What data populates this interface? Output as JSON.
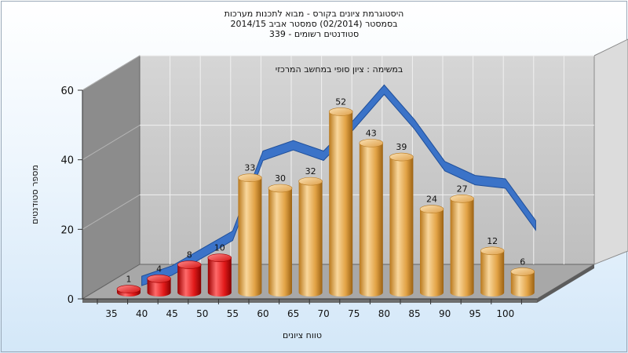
{
  "chart_data": {
    "type": "bar",
    "title": "היסטוגרמת ציונים בקורס - מבוא לתכנות מערכות",
    "subtitle": "בסמסטר  (02/2014)  סמסטר אביב 2014/15",
    "registered": "סטודנטים רשומים - 339",
    "annotation": "במשימה : ציון סופי במחשב המרכזי",
    "xlabel": "טווח ציונים",
    "ylabel": "מספר סטודנטים",
    "categories": [
      "35",
      "40",
      "45",
      "50",
      "55",
      "60",
      "65",
      "70",
      "75",
      "80",
      "85",
      "90",
      "95",
      "100"
    ],
    "values": [
      1,
      4,
      8,
      10,
      33,
      30,
      32,
      52,
      43,
      39,
      24,
      27,
      12,
      6
    ],
    "failing_categories": [
      "35",
      "40",
      "45",
      "50"
    ],
    "yticks": [
      "0",
      "20",
      "40",
      "60"
    ],
    "ylim": [
      0,
      60
    ],
    "grid": true,
    "curve": {
      "x": [
        40,
        45,
        50,
        55,
        60,
        65,
        70,
        75,
        80,
        85,
        90,
        95,
        100,
        105
      ],
      "y": [
        2,
        5,
        10,
        15,
        38,
        41,
        38,
        47,
        57,
        47,
        35,
        31,
        30,
        18
      ]
    },
    "colors": {
      "failing": "#e11b1b",
      "passing": "#e8a850",
      "curve": "#3b73c8"
    }
  }
}
